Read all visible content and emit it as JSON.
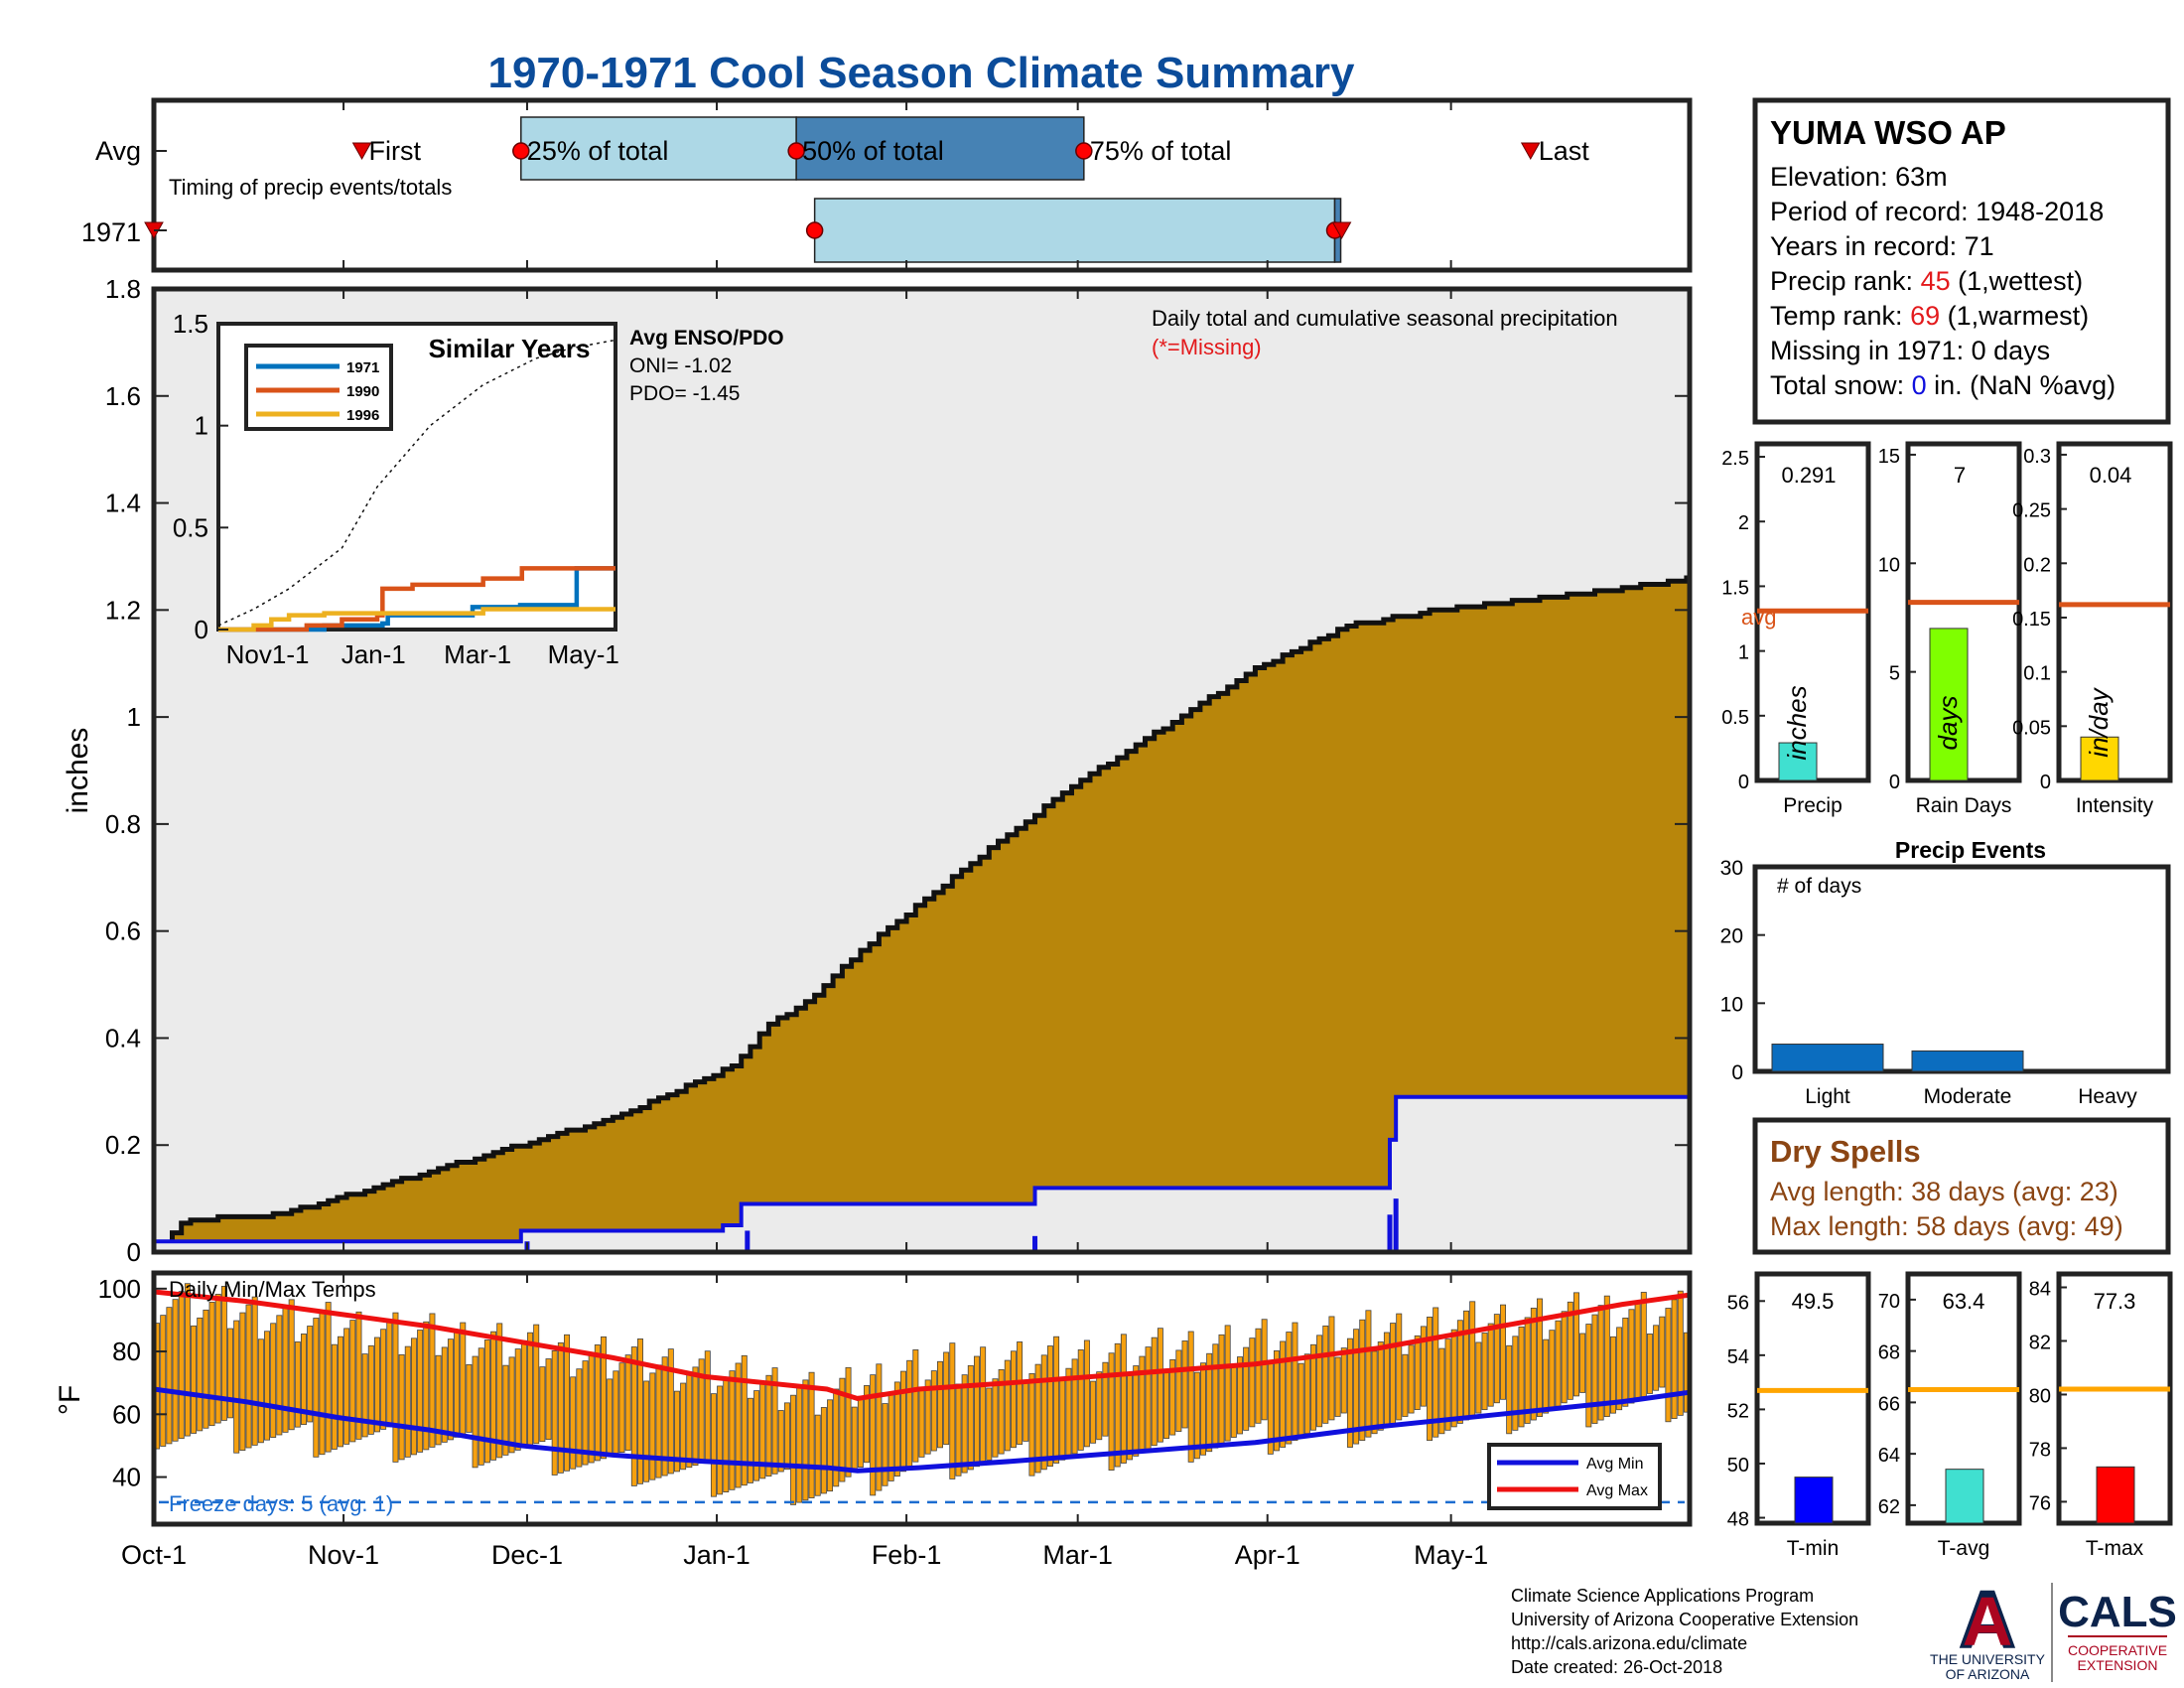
{
  "title": "1970-1971 Cool Season Climate Summary",
  "months": [
    "Oct-1",
    "Nov-1",
    "Dec-1",
    "Jan-1",
    "Feb-1",
    "Mar-1",
    "Apr-1",
    "May-1"
  ],
  "timing": {
    "label": "Timing of precip events/totals",
    "avg_row": "Avg",
    "year_row": "1971",
    "first": "First",
    "p25": "25% of total",
    "p50": "50% of total",
    "p75": "75% of total",
    "last": "Last"
  },
  "station": {
    "name": "YUMA WSO AP",
    "elevation": "Elevation: 63m",
    "period": "Period of record: 1948-2018",
    "years": "Years in record: 71",
    "precip_rank_pre": "Precip rank: ",
    "precip_rank": "45",
    "precip_rank_post": " (1,wettest)",
    "temp_rank_pre": "Temp rank: ",
    "temp_rank": "69",
    "temp_rank_post": " (1,warmest)",
    "missing": "Missing in 1971: 0 days",
    "snow_pre": "Total snow: ",
    "snow_val": "0",
    "snow_post": " in. (NaN %avg)"
  },
  "main": {
    "ylabel": "inches",
    "desc": "Daily total and cumulative seasonal precipitation",
    "missing_note": "(*=Missing)",
    "yticks": [
      "0",
      "0.2",
      "0.4",
      "0.6",
      "0.8",
      "1",
      "1.2",
      "1.4",
      "1.6",
      "1.8"
    ]
  },
  "inset": {
    "title": "Similar Years",
    "yticks": [
      "0",
      "0.5",
      "1",
      "1.5"
    ],
    "xticks": [
      "Nov1-1",
      "Jan-1",
      "Mar-1",
      "May-1"
    ],
    "legend": [
      "1971",
      "1990",
      "1996"
    ],
    "enso_title": "Avg ENSO/PDO",
    "oni": "ONI= -1.02",
    "pdo": "PDO= -1.45"
  },
  "small_bars": {
    "precip": {
      "label": "Precip",
      "value_text": "0.291",
      "unit": "inches",
      "avg_label": "avg",
      "yticks": [
        "0",
        "0.5",
        "1",
        "1.5",
        "2",
        "2.5"
      ]
    },
    "raindays": {
      "label": "Rain Days",
      "value_text": "7",
      "unit": "days",
      "yticks": [
        "0",
        "5",
        "10",
        "15"
      ]
    },
    "intensity": {
      "label": "Intensity",
      "value_text": "0.04",
      "unit": "in/day",
      "yticks": [
        "0",
        "0.05",
        "0.1",
        "0.15",
        "0.2",
        "0.25",
        "0.3"
      ]
    }
  },
  "events": {
    "title": "Precip Events",
    "ylabel": "# of days",
    "yticks": [
      "0",
      "10",
      "20",
      "30"
    ],
    "categories": [
      "Light",
      "Moderate",
      "Heavy"
    ]
  },
  "dry": {
    "title": "Dry Spells",
    "avg": "Avg length: 38 days (avg: 23)",
    "max": "Max length: 58 days (avg: 49)"
  },
  "temp": {
    "label": "Daily Min/Max Temps",
    "ylabel": "°F",
    "yticks": [
      "40",
      "60",
      "80",
      "100"
    ],
    "freeze": "Freeze days: 5 (avg. 1)",
    "legend_min": "Avg Min",
    "legend_max": "Avg Max"
  },
  "temp_bars": {
    "tmin": {
      "label": "T-min",
      "value_text": "49.5",
      "yticks": [
        "48",
        "50",
        "52",
        "54",
        "56"
      ]
    },
    "tavg": {
      "label": "T-avg",
      "value_text": "63.4",
      "yticks": [
        "62",
        "64",
        "66",
        "68",
        "70"
      ]
    },
    "tmax": {
      "label": "T-max",
      "value_text": "77.3",
      "yticks": [
        "76",
        "78",
        "80",
        "82",
        "84"
      ]
    }
  },
  "footer": {
    "line1": "Climate Science Applications Program",
    "line2": "University of Arizona Cooperative Extension",
    "line3": "http://cals.arizona.edu/climate",
    "line4": " Date created: 26-Oct-2018",
    "ua_letter": "A",
    "ua_text1": "THE UNIVERSITY",
    "ua_text2": "OF ARIZONA",
    "cals": "CALS",
    "cals_sub1": "COOPERATIVE",
    "cals_sub2": "EXTENSION"
  },
  "colors": {
    "title": "#0b4c9a",
    "fill": "#b8860b",
    "avg_line": "#1010dd",
    "tmax": "#ee1111",
    "tbar": "#f5a00f",
    "avg_orange": "#d95319",
    "rank_red": "#e31a1c",
    "snow_blue": "#1010dd",
    "dry_brown": "#8b4513",
    "precip_bar": "#40e0d0",
    "rain_bar": "#7fff00",
    "int_bar": "#ffd700",
    "event_bar": "#0b6dbf",
    "tmin_bar": "#0000ff",
    "tavg_bar": "#40e0d0",
    "tmax_bar": "#ff0000",
    "ua_red": "#ab0520",
    "ua_blue": "#0c234b"
  },
  "chart_data": [
    {
      "type": "timing",
      "avg": {
        "first_day": 34,
        "p25_day": 60,
        "p50_day": 105,
        "p75_day": 152,
        "last_day": 225
      },
      "year_1971": {
        "first_day": 0,
        "p25_day": 108,
        "p50_day": 108,
        "p75_day": 193,
        "last_day": 193
      }
    },
    {
      "type": "area",
      "title": "Daily total and cumulative seasonal precipitation",
      "ylabel": "inches",
      "ylim": [
        0,
        1.8
      ],
      "avg_cumulative_steps": [
        [
          0,
          0
        ],
        [
          1,
          0.01
        ],
        [
          5,
          0.06
        ],
        [
          20,
          0.07
        ],
        [
          30,
          0.1
        ],
        [
          45,
          0.15
        ],
        [
          60,
          0.2
        ],
        [
          75,
          0.25
        ],
        [
          85,
          0.3
        ],
        [
          95,
          0.35
        ],
        [
          100,
          0.42
        ],
        [
          108,
          0.48
        ],
        [
          115,
          0.56
        ],
        [
          125,
          0.65
        ],
        [
          135,
          0.74
        ],
        [
          150,
          0.87
        ],
        [
          165,
          0.98
        ],
        [
          180,
          1.09
        ],
        [
          195,
          1.17
        ],
        [
          210,
          1.2
        ],
        [
          225,
          1.22
        ],
        [
          240,
          1.24
        ],
        [
          251,
          1.26
        ]
      ],
      "year_1971_steps": [
        [
          0,
          0.02
        ],
        [
          60,
          0.04
        ],
        [
          93,
          0.05
        ],
        [
          96,
          0.09
        ],
        [
          144,
          0.12
        ],
        [
          202,
          0.21
        ],
        [
          203,
          0.29
        ],
        [
          251,
          0.29
        ]
      ],
      "daily_bars": [
        [
          61,
          0.02
        ],
        [
          97,
          0.04
        ],
        [
          144,
          0.03
        ],
        [
          202,
          0.07
        ],
        [
          203,
          0.1
        ]
      ]
    },
    {
      "type": "line",
      "title": "Similar Years",
      "ylim": [
        0,
        1.5
      ],
      "series": [
        {
          "name": "1971",
          "points": [
            [
              0,
              0
            ],
            [
              60,
              0.02
            ],
            [
              93,
              0.03
            ],
            [
              96,
              0.07
            ],
            [
              144,
              0.11
            ],
            [
              171,
              0.12
            ],
            [
              203,
              0.3
            ],
            [
              225,
              0.3
            ]
          ]
        },
        {
          "name": "1990",
          "points": [
            [
              0,
              0
            ],
            [
              50,
              0.02
            ],
            [
              70,
              0.05
            ],
            [
              90,
              0.07
            ],
            [
              93,
              0.2
            ],
            [
              110,
              0.22
            ],
            [
              150,
              0.25
            ],
            [
              170,
              0.25
            ],
            [
              172,
              0.3
            ],
            [
              225,
              0.3
            ]
          ]
        },
        {
          "name": "1996",
          "points": [
            [
              0,
              0
            ],
            [
              20,
              0.02
            ],
            [
              30,
              0.05
            ],
            [
              40,
              0.07
            ],
            [
              60,
              0.08
            ],
            [
              110,
              0.08
            ],
            [
              150,
              0.1
            ],
            [
              225,
              0.1
            ]
          ]
        }
      ],
      "avg_curve": [
        [
          0,
          0.02
        ],
        [
          20,
          0.1
        ],
        [
          40,
          0.2
        ],
        [
          70,
          0.4
        ],
        [
          90,
          0.7
        ],
        [
          120,
          1.0
        ],
        [
          150,
          1.2
        ],
        [
          180,
          1.33
        ],
        [
          200,
          1.38
        ],
        [
          225,
          1.42
        ]
      ]
    },
    {
      "type": "bar",
      "title": "Precip",
      "categories": [
        "Precip"
      ],
      "values": [
        0.291
      ],
      "avg": 1.31,
      "ylim": [
        0,
        2.6
      ]
    },
    {
      "type": "bar",
      "title": "Rain Days",
      "categories": [
        "Rain Days"
      ],
      "values": [
        7
      ],
      "avg": 8.2,
      "ylim": [
        0,
        15.5
      ]
    },
    {
      "type": "bar",
      "title": "Intensity",
      "categories": [
        "Intensity"
      ],
      "values": [
        0.04
      ],
      "avg": 0.162,
      "ylim": [
        0,
        0.31
      ]
    },
    {
      "type": "bar",
      "title": "Precip Events",
      "categories": [
        "Light",
        "Moderate",
        "Heavy"
      ],
      "values": [
        4,
        3,
        0
      ],
      "ylim": [
        0,
        30
      ]
    },
    {
      "type": "bar",
      "title": "Daily Min/Max Temps",
      "ylabel": "°F",
      "ylim": [
        25,
        105
      ],
      "freeze_line": 32,
      "avg_max_curve": [
        [
          0,
          99
        ],
        [
          15,
          96
        ],
        [
          30,
          92
        ],
        [
          45,
          88
        ],
        [
          60,
          83
        ],
        [
          75,
          78
        ],
        [
          90,
          72
        ],
        [
          100,
          70
        ],
        [
          110,
          68
        ],
        [
          115,
          65
        ],
        [
          125,
          68
        ],
        [
          140,
          70
        ],
        [
          160,
          73
        ],
        [
          180,
          76
        ],
        [
          200,
          81
        ],
        [
          220,
          88
        ],
        [
          240,
          95
        ],
        [
          251,
          98
        ]
      ],
      "avg_min_curve": [
        [
          0,
          68
        ],
        [
          15,
          64
        ],
        [
          30,
          59
        ],
        [
          45,
          55
        ],
        [
          60,
          50
        ],
        [
          75,
          47
        ],
        [
          90,
          45
        ],
        [
          100,
          44
        ],
        [
          110,
          43
        ],
        [
          115,
          42
        ],
        [
          125,
          43
        ],
        [
          140,
          45
        ],
        [
          160,
          48
        ],
        [
          180,
          51
        ],
        [
          200,
          56
        ],
        [
          220,
          60
        ],
        [
          240,
          64
        ],
        [
          251,
          67
        ]
      ],
      "daily_max_profile": [
        [
          0,
          97
        ],
        [
          30,
          88
        ],
        [
          60,
          82
        ],
        [
          90,
          74
        ],
        [
          110,
          66
        ],
        [
          125,
          75
        ],
        [
          150,
          78
        ],
        [
          180,
          83
        ],
        [
          210,
          88
        ],
        [
          240,
          93
        ],
        [
          251,
          92
        ]
      ],
      "daily_min_profile": [
        [
          0,
          55
        ],
        [
          30,
          52
        ],
        [
          60,
          48
        ],
        [
          90,
          40
        ],
        [
          110,
          36
        ],
        [
          125,
          45
        ],
        [
          150,
          47
        ],
        [
          180,
          53
        ],
        [
          210,
          58
        ],
        [
          240,
          63
        ],
        [
          251,
          64
        ]
      ]
    },
    {
      "type": "bar",
      "title": "T-min",
      "categories": [
        "T-min"
      ],
      "values": [
        49.5
      ],
      "avg": 52.7,
      "ylim": [
        47.8,
        57
      ]
    },
    {
      "type": "bar",
      "title": "T-avg",
      "categories": [
        "T-avg"
      ],
      "values": [
        63.4
      ],
      "avg": 66.5,
      "ylim": [
        61.3,
        71
      ]
    },
    {
      "type": "bar",
      "title": "T-max",
      "categories": [
        "T-max"
      ],
      "values": [
        77.3
      ],
      "avg": 80.2,
      "ylim": [
        75.2,
        84.5
      ]
    }
  ]
}
